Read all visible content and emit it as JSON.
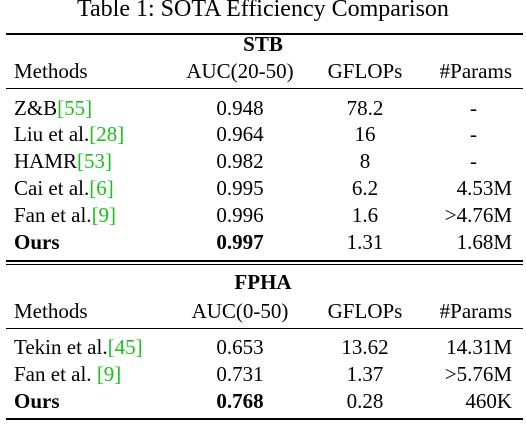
{
  "caption": "Table 1: SOTA Efficiency Comparison",
  "stb": {
    "title": "STB",
    "headers": [
      "Methods",
      "AUC(20-50)",
      "GFLOPs",
      "#Params"
    ],
    "rows": [
      {
        "name": "Z&B",
        "ref": "[55]",
        "auc": "0.948",
        "gflops": "78.2",
        "params": "-"
      },
      {
        "name": "Liu et al.",
        "ref": "[28]",
        "auc": "0.964",
        "gflops": "16",
        "params": "-"
      },
      {
        "name": "HAMR",
        "ref": "[53]",
        "auc": "0.982",
        "gflops": "8",
        "params": "-"
      },
      {
        "name": "Cai et al.",
        "ref": "[6]",
        "auc": "0.995",
        "gflops": "6.2",
        "params": "4.53M"
      },
      {
        "name": "Fan et al.",
        "ref": "[9]",
        "auc": "0.996",
        "gflops": "1.6",
        "params": ">4.76M"
      },
      {
        "name": "Ours",
        "ref": "",
        "auc": "0.997",
        "gflops": "1.31",
        "params": "1.68M"
      }
    ]
  },
  "fpha": {
    "title": "FPHA",
    "headers": [
      "Methods",
      "AUC(0-50)",
      "GFLOPs",
      "#Params"
    ],
    "rows": [
      {
        "name": "Tekin et al.",
        "ref": "[45]",
        "auc": "0.653",
        "gflops": "13.62",
        "params": "14.31M"
      },
      {
        "name": "Fan et al. ",
        "ref": "[9]",
        "auc": "0.731",
        "gflops": "1.37",
        "params": ">5.76M"
      },
      {
        "name": "Ours",
        "ref": "",
        "auc": "0.768",
        "gflops": "0.28",
        "params": "460K"
      }
    ]
  },
  "colors": {
    "reference_link": "#19c219",
    "text": "#000000"
  }
}
